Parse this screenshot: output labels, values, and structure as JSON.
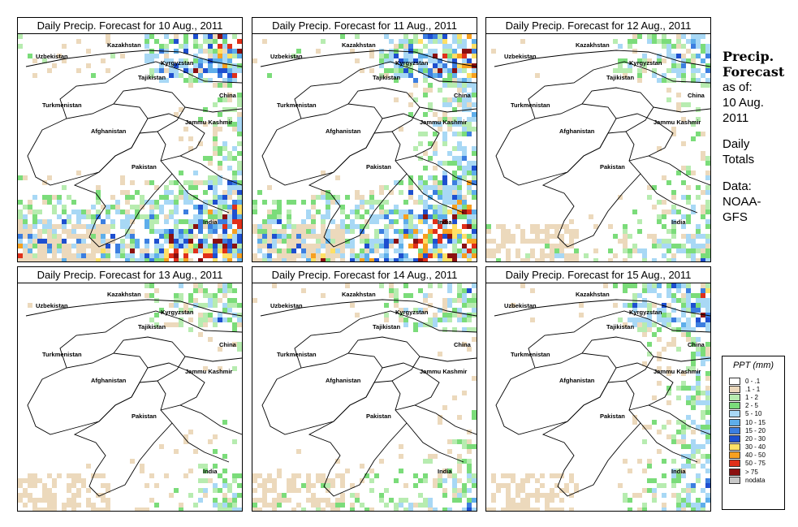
{
  "panels": [
    {
      "title": "Daily Precip. Forecast for  10 Aug., 2011",
      "intensity": 1.0,
      "south_heavy": 1.0,
      "east_heavy": 0.6
    },
    {
      "title": "Daily Precip. Forecast for  11 Aug., 2011",
      "intensity": 0.95,
      "south_heavy": 1.0,
      "east_heavy": 0.9
    },
    {
      "title": "Daily Precip. Forecast for  12 Aug., 2011",
      "intensity": 0.6,
      "south_heavy": 0.6,
      "east_heavy": 0.7
    },
    {
      "title": "Daily Precip. Forecast for  13 Aug., 2011",
      "intensity": 0.55,
      "south_heavy": 0.5,
      "east_heavy": 0.6
    },
    {
      "title": "Daily Precip. Forecast for  14 Aug., 2011",
      "intensity": 0.6,
      "south_heavy": 0.6,
      "east_heavy": 0.5
    },
    {
      "title": "Daily Precip. Forecast for  15 Aug., 2011",
      "intensity": 0.7,
      "south_heavy": 0.3,
      "east_heavy": 1.0
    }
  ],
  "map_labels": [
    {
      "text": "Kazakhstan",
      "key": "kazakhstan"
    },
    {
      "text": "Uzbekistan",
      "key": "uzbekistan"
    },
    {
      "text": "Kyrgyzstan",
      "key": "kyrgyzstan"
    },
    {
      "text": "Tajikistan",
      "key": "tajikistan"
    },
    {
      "text": "China",
      "key": "china"
    },
    {
      "text": "Turkmenistan",
      "key": "turkmenistan"
    },
    {
      "text": "Jammu Kashmir",
      "key": "jammu-kashmir"
    },
    {
      "text": "Afghanistan",
      "key": "afghanistan"
    },
    {
      "text": "Pakistan",
      "key": "pakistan"
    },
    {
      "text": "India",
      "key": "india"
    }
  ],
  "side": {
    "title_line1": "Precip.",
    "title_line2": "Forecast",
    "asof_line1": "as of:",
    "asof_line2": "10 Aug.",
    "asof_line3": "2011",
    "totals_line1": "Daily",
    "totals_line2": "Totals",
    "data_line1": "Data:",
    "data_line2": "NOAA-",
    "data_line3": "GFS"
  },
  "legend": {
    "title": "PPT (mm)",
    "items": [
      {
        "label": "0 - .1",
        "color": "#ffffff"
      },
      {
        "label": ".1 - 1",
        "color": "#ecd9bc"
      },
      {
        "label": "1 - 2",
        "color": "#b7ecb0"
      },
      {
        "label": "2 - 5",
        "color": "#7bdc7a"
      },
      {
        "label": "5 - 10",
        "color": "#a8d8f5"
      },
      {
        "label": "10 - 15",
        "color": "#5eaeea"
      },
      {
        "label": "15 - 20",
        "color": "#3c7ee0"
      },
      {
        "label": "20 - 30",
        "color": "#1e4fcf"
      },
      {
        "label": "30 - 40",
        "color": "#ffe066"
      },
      {
        "label": "40 - 50",
        "color": "#f7a020"
      },
      {
        "label": "50 - 75",
        "color": "#e0301a"
      },
      {
        "label": "> 75",
        "color": "#8b1010"
      },
      {
        "label": "nodata",
        "color": "#c8c8c8"
      }
    ]
  }
}
